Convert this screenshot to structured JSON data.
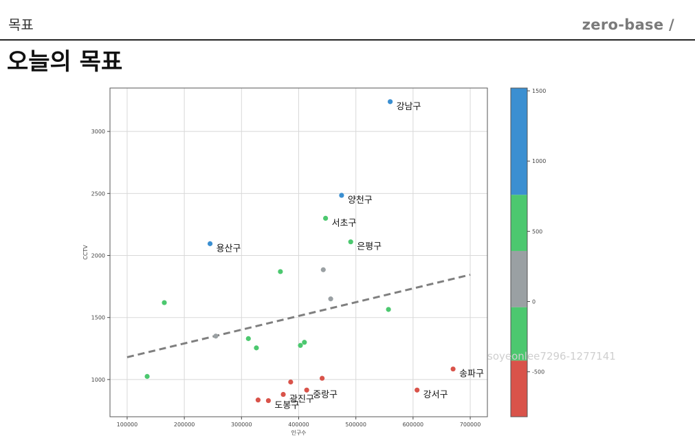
{
  "header": {
    "section": "목표",
    "brand": "zero-base",
    "brand_mark": "/"
  },
  "page_title": "오늘의 목표",
  "watermark": "soyeonlee7296-1277141",
  "chart_data": {
    "type": "scatter",
    "xlabel": "인구수",
    "ylabel": "CCTV",
    "xlim": [
      70000,
      730000
    ],
    "ylim": [
      700,
      3350
    ],
    "x_ticks": [
      100000,
      200000,
      300000,
      400000,
      500000,
      600000,
      700000
    ],
    "y_ticks": [
      1000,
      1500,
      2000,
      2500,
      3000
    ],
    "grid": true,
    "colors": {
      "blue": "#3b8fd1",
      "green": "#4cc86f",
      "gray": "#9aa0a3",
      "red": "#d9534a",
      "trend": "#7f7f7f"
    },
    "points": [
      {
        "x": 560000,
        "y": 3240,
        "color": "blue",
        "label": "강남구"
      },
      {
        "x": 475000,
        "y": 2485,
        "color": "blue",
        "label": "양천구"
      },
      {
        "x": 447000,
        "y": 2300,
        "color": "green",
        "label": "서초구"
      },
      {
        "x": 491000,
        "y": 2110,
        "color": "green",
        "label": "은평구"
      },
      {
        "x": 245000,
        "y": 2095,
        "color": "blue",
        "label": "용산구"
      },
      {
        "x": 368000,
        "y": 1870,
        "color": "green",
        "label": ""
      },
      {
        "x": 443000,
        "y": 1885,
        "color": "gray",
        "label": ""
      },
      {
        "x": 456000,
        "y": 1650,
        "color": "gray",
        "label": ""
      },
      {
        "x": 165000,
        "y": 1620,
        "color": "green",
        "label": ""
      },
      {
        "x": 557000,
        "y": 1565,
        "color": "green",
        "label": ""
      },
      {
        "x": 255000,
        "y": 1350,
        "color": "gray",
        "label": ""
      },
      {
        "x": 312000,
        "y": 1330,
        "color": "green",
        "label": ""
      },
      {
        "x": 326000,
        "y": 1255,
        "color": "green",
        "label": ""
      },
      {
        "x": 410000,
        "y": 1300,
        "color": "green",
        "label": ""
      },
      {
        "x": 403000,
        "y": 1275,
        "color": "green",
        "label": ""
      },
      {
        "x": 135000,
        "y": 1025,
        "color": "green",
        "label": ""
      },
      {
        "x": 670000,
        "y": 1085,
        "color": "red",
        "label": "송파구"
      },
      {
        "x": 607000,
        "y": 915,
        "color": "red",
        "label": "강서구"
      },
      {
        "x": 441000,
        "y": 1010,
        "color": "red",
        "label": ""
      },
      {
        "x": 414000,
        "y": 915,
        "color": "red",
        "label": "중랑구"
      },
      {
        "x": 386000,
        "y": 980,
        "color": "red",
        "label": ""
      },
      {
        "x": 373000,
        "y": 880,
        "color": "red",
        "label": "광진구"
      },
      {
        "x": 347000,
        "y": 830,
        "color": "red",
        "label": "도봉구"
      },
      {
        "x": 329000,
        "y": 835,
        "color": "red",
        "label": ""
      }
    ],
    "trendline": {
      "x": [
        100000,
        700000
      ],
      "y": [
        1180,
        1845
      ]
    },
    "colorbar": {
      "range": [
        -820,
        1520
      ],
      "ticks": [
        -500,
        0,
        500,
        1000,
        1500
      ],
      "segments": [
        {
          "from": -820,
          "to": -420,
          "color": "red"
        },
        {
          "from": -420,
          "to": -40,
          "color": "green"
        },
        {
          "from": -40,
          "to": 360,
          "color": "gray"
        },
        {
          "from": 360,
          "to": 760,
          "color": "green"
        },
        {
          "from": 760,
          "to": 1520,
          "color": "blue"
        }
      ]
    }
  }
}
